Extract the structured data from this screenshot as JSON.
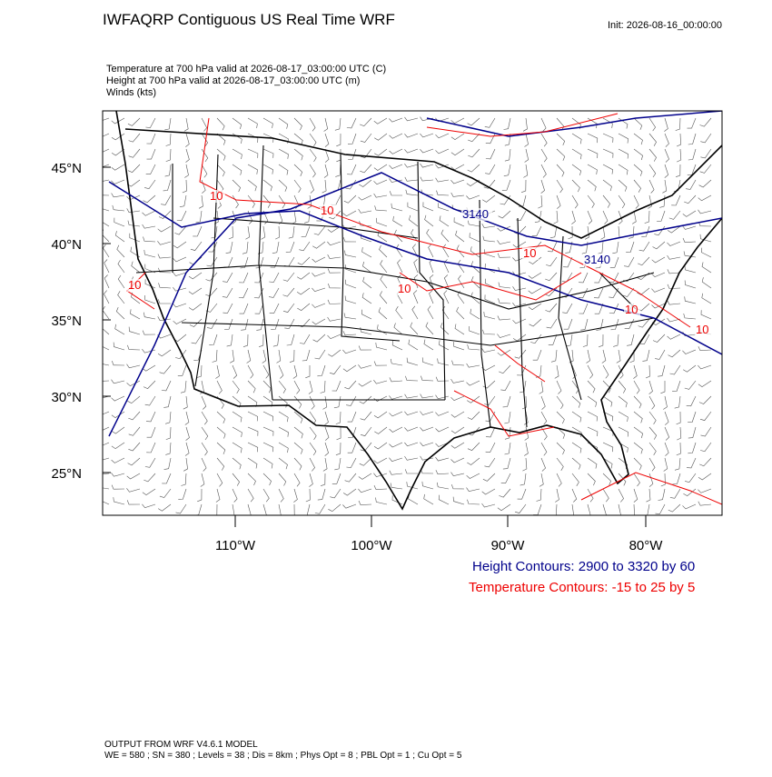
{
  "header": {
    "title": "IWFAQRP Contiguous US Real Time WRF",
    "init": "Init: 2026-08-16_00:00:00"
  },
  "fields": [
    "Temperature at 700 hPa valid at 2026-08-17_03:00:00 UTC   (C)",
    "Height at 700 hPa valid at 2026-08-17_03:00:00 UTC   (m)",
    "Winds   (kts)"
  ],
  "map": {
    "lat_labels": [
      "45°N",
      "40°N",
      "35°N",
      "30°N",
      "25°N"
    ],
    "lon_labels": [
      "110°W",
      "100°W",
      "90°W",
      "80°W"
    ],
    "contour_labels": [
      {
        "text": "10",
        "kind": "temperature"
      },
      {
        "text": "10",
        "kind": "temperature"
      },
      {
        "text": "3140",
        "kind": "height"
      },
      {
        "text": "10",
        "kind": "temperature"
      },
      {
        "text": "3140",
        "kind": "height"
      },
      {
        "text": "10",
        "kind": "temperature"
      },
      {
        "text": "10",
        "kind": "temperature"
      },
      {
        "text": "10",
        "kind": "temperature"
      },
      {
        "text": "10",
        "kind": "temperature"
      }
    ]
  },
  "legend": [
    "Height Contours: 2900 to 3320 by 60",
    "Temperature Contours: -15 to 25 by 5"
  ],
  "footer": [
    "OUTPUT FROM WRF V4.6.1 MODEL",
    "WE = 580 ; SN = 380 ; Levels = 38 ; Dis = 8km ; Phys Opt = 8 ; PBL Opt = 1 ; Cu Opt = 5"
  ]
}
